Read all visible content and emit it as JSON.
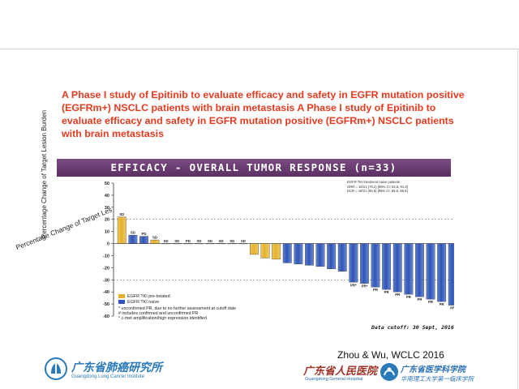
{
  "slide": {
    "title": "A Phase I study of Epitinib to evaluate efficacy and safety in EGFR mutation positive (EGFRm+) NSCLC patients with brain metastasis  A Phase I study of Epitinib to evaluate efficacy and safety in EGFR mutation positive (EGFRm+) NSCLC patients with brain metastasis",
    "citation": "Zhou & Wu, WCLC 2016",
    "overflow_caption": "Percentage Change of Target Les",
    "colors": {
      "title": "#e63a1f",
      "banner": "#6a3c72",
      "bar_pretreated": "#e6b22a",
      "bar_naive": "#2e55b8"
    }
  },
  "chart_data": {
    "type": "bar",
    "title": "EFFICACY - OVERALL TUMOR RESPONSE (n=33)",
    "ylabel": "Percentage Change of Target Lesion Burden",
    "ylim": [
      -60,
      50
    ],
    "yticks": [
      -60,
      -50,
      -40,
      -30,
      -20,
      -10,
      0,
      10,
      20,
      30,
      40,
      50
    ],
    "reference_lines": [
      20,
      -30
    ],
    "grid": false,
    "legend": "bottom-left",
    "series": [
      {
        "name": "EGFR TKI pre-treated",
        "color": "#e6b22a"
      },
      {
        "name": "EGFR TKI naive",
        "color": "#2e55b8"
      }
    ],
    "values": [
      22,
      7,
      6,
      3,
      0,
      0,
      0,
      0,
      0,
      0,
      0,
      0,
      -9,
      -12,
      -13,
      -16,
      -17,
      -18,
      -19,
      -21,
      -23,
      -32,
      -33,
      -36,
      -38,
      -40,
      -42,
      -44,
      -46,
      -48,
      -51,
      -53,
      -55
    ],
    "groups": [
      "pre-treated",
      "naive",
      "naive",
      "pre-treated",
      "naive",
      "naive",
      "naive",
      "naive",
      "naive",
      "naive",
      "naive",
      "naive",
      "pre-treated",
      "pre-treated",
      "pre-treated",
      "naive",
      "naive",
      "naive",
      "naive",
      "naive",
      "naive",
      "naive",
      "naive",
      "naive",
      "naive",
      "naive",
      "naive",
      "naive",
      "naive",
      "naive",
      "naive",
      "naive",
      "naive"
    ],
    "bar_labels": [
      "SD",
      "SD",
      "PD",
      "SD",
      "SD",
      "SD",
      "PD",
      "SD",
      "SD",
      "SD",
      "SD",
      "SD",
      "",
      "",
      "",
      "",
      "",
      "",
      "",
      "",
      "",
      "PR*",
      "PR*",
      "PR",
      "PR",
      "PR",
      "PR",
      "PR",
      "PR",
      "PR",
      "PR",
      "PR",
      "PR"
    ],
    "stats": [
      "EGFR TKI treatment naive patients",
      "ORR = 16/21 (76.2) [95% CI: 52.8, 91.8]",
      "DCR = 18/21 (90.5) [95% CI: 69.6, 98.8]"
    ],
    "footnotes": [
      "* unconfirmed PR, due to no further assessment at cutoff date",
      "# includes confirmed and unconfirmed PR",
      "* c-met amplification/high expression identified"
    ],
    "data_cutoff": "Data cutoff: 30 Sept, 2016"
  },
  "logos": {
    "left": {
      "name": "广东省肺癌研究所",
      "subtitle": "Guangdong Lung Cancer Institute"
    },
    "right": {
      "name": "广东省人民医院",
      "subtitle": "Guangdong General Hospital",
      "secondary": "广东省医学科学院",
      "secondary_sub": "华南理工大学第一临床学院"
    }
  }
}
